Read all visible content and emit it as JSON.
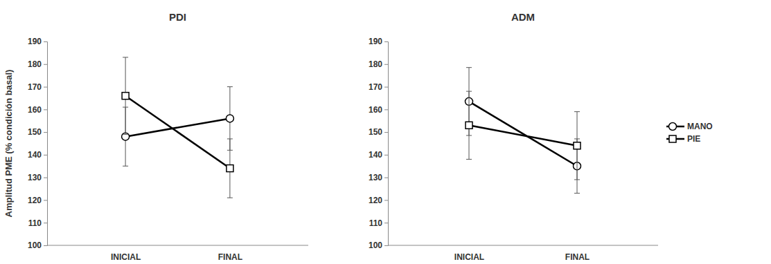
{
  "chart_data": [
    {
      "type": "line",
      "title": "PDI",
      "y_label": "Amplitud PME (% condición basal)",
      "categories": [
        "INICIAL",
        "FINAL"
      ],
      "ylim": [
        100,
        190
      ],
      "yticks": [
        100,
        110,
        120,
        130,
        140,
        150,
        160,
        170,
        180,
        190
      ],
      "series": [
        {
          "color": "#000000",
          "marker": "circle",
          "values": [
            148,
            156
          ],
          "errors": [
            13,
            14
          ]
        },
        {
          "color": "#000000",
          "marker": "square",
          "values": [
            166,
            134
          ],
          "errors": [
            17,
            13
          ]
        }
      ]
    },
    {
      "type": "line",
      "title": "ADM",
      "legend": "right",
      "categories": [
        "INICIAL",
        "FINAL"
      ],
      "ylim": [
        100,
        190
      ],
      "yticks": [
        100,
        110,
        120,
        130,
        140,
        150,
        160,
        170,
        180,
        190
      ],
      "series": [
        {
          "name": "MANO",
          "color": "#000000",
          "marker": "circle",
          "values": [
            163.5,
            135
          ],
          "errors": [
            15,
            12
          ]
        },
        {
          "name": "PIE",
          "color": "#000000",
          "marker": "square",
          "values": [
            153,
            144
          ],
          "errors": [
            15,
            15
          ]
        }
      ]
    }
  ]
}
